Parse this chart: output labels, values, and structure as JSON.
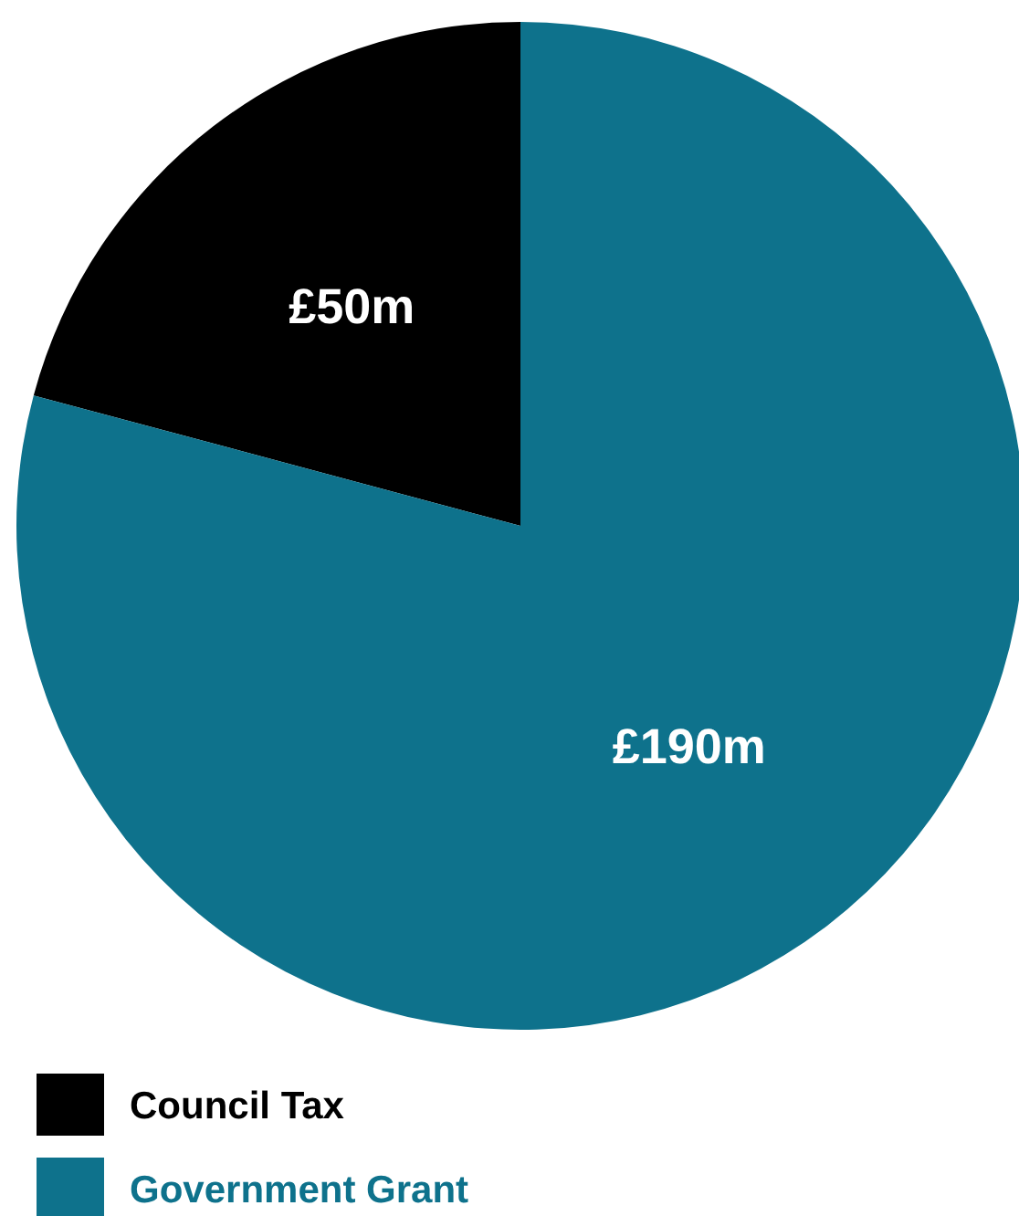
{
  "chart_data": {
    "type": "pie",
    "categories": [
      "Council Tax",
      "Government Grant"
    ],
    "values": [
      50,
      190
    ],
    "colors": [
      "#000000",
      "#0e728c"
    ],
    "value_labels": [
      "£50m",
      "£190m"
    ],
    "legend": "bottom left"
  }
}
